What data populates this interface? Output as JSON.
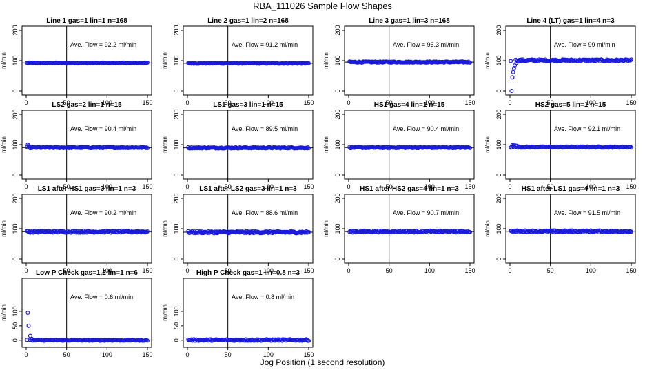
{
  "figure": {
    "title": "RBA_111026  Sample Flow Shapes",
    "xlabel": "Jog Position (1 second resolution)"
  },
  "colors": {
    "points": "#1a1adb",
    "axes": "#000000"
  },
  "chart_data": [
    {
      "type": "scatter",
      "title": "Line 1 gas=1 lin=1 n=168",
      "annotation": "Ave. Flow =  92.2  ml/min",
      "ylabel": "ml/min",
      "xlim": [
        0,
        150
      ],
      "ylim": [
        0,
        200
      ],
      "xticks": [
        0,
        50,
        100,
        150
      ],
      "yticks": [
        0,
        100,
        200
      ],
      "vline": 50,
      "hline": 92.2,
      "series": [
        {
          "x_range": [
            1,
            150
          ],
          "y": 92.2,
          "noise": 1.5
        }
      ]
    },
    {
      "type": "scatter",
      "title": "Line 2 gas=1 lin=2 n=168",
      "annotation": "Ave. Flow =  91.2  ml/min",
      "ylabel": "ml/min",
      "xlim": [
        0,
        150
      ],
      "ylim": [
        0,
        200
      ],
      "xticks": [
        0,
        50,
        100,
        150
      ],
      "yticks": [
        0,
        100,
        200
      ],
      "vline": 50,
      "hline": 91.2,
      "series": [
        {
          "x_range": [
            1,
            150
          ],
          "y": 91.2,
          "noise": 1.5
        }
      ]
    },
    {
      "type": "scatter",
      "title": "Line 3 gas=1 lin=3 n=168",
      "annotation": "Ave. Flow =  95.3  ml/min",
      "ylabel": "ml/min",
      "xlim": [
        0,
        150
      ],
      "ylim": [
        0,
        200
      ],
      "xticks": [
        0,
        50,
        100,
        150
      ],
      "yticks": [
        0,
        100,
        200
      ],
      "vline": 50,
      "hline": 95.3,
      "series": [
        {
          "x_range": [
            1,
            150
          ],
          "y": 95.3,
          "noise": 2
        }
      ]
    },
    {
      "type": "scatter",
      "title": "Line 4 (LT) gas=1 lin=4 n=3",
      "annotation": "Ave. Flow =  99  ml/min",
      "ylabel": "ml/min",
      "xlim": [
        0,
        150
      ],
      "ylim": [
        0,
        200
      ],
      "xticks": [
        0,
        50,
        100,
        150
      ],
      "yticks": [
        0,
        100,
        200
      ],
      "vline": 50,
      "hline": 99,
      "series": [
        {
          "x_range": [
            1,
            150
          ],
          "y": 101,
          "noise": 3,
          "start_points": [
            [
              2,
              0
            ],
            [
              3,
              45
            ],
            [
              4,
              62
            ],
            [
              5,
              75
            ],
            [
              6,
              84
            ],
            [
              8,
              92
            ],
            [
              10,
              97
            ]
          ]
        }
      ]
    },
    {
      "type": "scatter",
      "title": "LS2 gas=2 lin=1 n=15",
      "annotation": "Ave. Flow =  90.4  ml/min",
      "ylabel": "ml/min",
      "xlim": [
        0,
        150
      ],
      "ylim": [
        0,
        200
      ],
      "xticks": [
        0,
        50,
        100,
        150
      ],
      "yticks": [
        0,
        100,
        200
      ],
      "vline": 50,
      "hline": 90.4,
      "series": [
        {
          "x_range": [
            1,
            150
          ],
          "y": 90.4,
          "noise": 2,
          "start_points": [
            [
              2,
              100
            ],
            [
              3,
              97
            ]
          ]
        }
      ]
    },
    {
      "type": "scatter",
      "title": "LS1 gas=3 lin=1 n=15",
      "annotation": "Ave. Flow =  89.5  ml/min",
      "ylabel": "ml/min",
      "xlim": [
        0,
        150
      ],
      "ylim": [
        0,
        200
      ],
      "xticks": [
        0,
        50,
        100,
        150
      ],
      "yticks": [
        0,
        100,
        200
      ],
      "vline": 50,
      "hline": 89.5,
      "series": [
        {
          "x_range": [
            1,
            150
          ],
          "y": 89.5,
          "noise": 2
        }
      ]
    },
    {
      "type": "scatter",
      "title": "HS1 gas=4 lin=1 n=15",
      "annotation": "Ave. Flow =  90.4  ml/min",
      "ylabel": "ml/min",
      "xlim": [
        0,
        150
      ],
      "ylim": [
        0,
        200
      ],
      "xticks": [
        0,
        50,
        100,
        150
      ],
      "yticks": [
        0,
        100,
        200
      ],
      "vline": 50,
      "hline": 90.4,
      "series": [
        {
          "x_range": [
            1,
            150
          ],
          "y": 90.4,
          "noise": 2
        }
      ]
    },
    {
      "type": "scatter",
      "title": "HS2 gas=5 lin=1 n=15",
      "annotation": "Ave. Flow =  92.1  ml/min",
      "ylabel": "ml/min",
      "xlim": [
        0,
        150
      ],
      "ylim": [
        0,
        200
      ],
      "xticks": [
        0,
        50,
        100,
        150
      ],
      "yticks": [
        0,
        100,
        200
      ],
      "vline": 50,
      "hline": 92.1,
      "series": [
        {
          "x_range": [
            1,
            150
          ],
          "y": 92.1,
          "noise": 2,
          "start_points": [
            [
              3,
              98
            ],
            [
              5,
              99
            ],
            [
              7,
              97
            ],
            [
              9,
              96
            ]
          ]
        }
      ]
    },
    {
      "type": "scatter",
      "title": "LS1 after HS1 gas=3 lin=1 n=3",
      "annotation": "Ave. Flow =  90.2  ml/min",
      "ylabel": "ml/min",
      "xlim": [
        0,
        150
      ],
      "ylim": [
        0,
        200
      ],
      "xticks": [
        0,
        50,
        100,
        150
      ],
      "yticks": [
        0,
        100,
        200
      ],
      "vline": 50,
      "hline": 90.2,
      "series": [
        {
          "x_range": [
            1,
            150
          ],
          "y": 90.2,
          "noise": 3
        }
      ]
    },
    {
      "type": "scatter",
      "title": "LS1 after LS2 gas=3 lin=1 n=3",
      "annotation": "Ave. Flow =  88.6  ml/min",
      "ylabel": "ml/min",
      "xlim": [
        0,
        150
      ],
      "ylim": [
        0,
        200
      ],
      "xticks": [
        0,
        50,
        100,
        150
      ],
      "yticks": [
        0,
        100,
        200
      ],
      "vline": 50,
      "hline": 88.6,
      "series": [
        {
          "x_range": [
            1,
            150
          ],
          "y": 88.6,
          "noise": 3
        }
      ]
    },
    {
      "type": "scatter",
      "title": "HS1 after HS2 gas=4 lin=1 n=3",
      "annotation": "Ave. Flow =  90.7  ml/min",
      "ylabel": "ml/min",
      "xlim": [
        0,
        150
      ],
      "ylim": [
        0,
        200
      ],
      "xticks": [
        0,
        50,
        100,
        150
      ],
      "yticks": [
        0,
        100,
        200
      ],
      "vline": 50,
      "hline": 90.7,
      "series": [
        {
          "x_range": [
            1,
            150
          ],
          "y": 90.7,
          "noise": 3
        }
      ]
    },
    {
      "type": "scatter",
      "title": "HS1 after LS1 gas=4 lin=1 n=3",
      "annotation": "Ave. Flow =  91.5  ml/min",
      "ylabel": "ml/min",
      "xlim": [
        0,
        150
      ],
      "ylim": [
        0,
        200
      ],
      "xticks": [
        0,
        50,
        100,
        150
      ],
      "yticks": [
        0,
        100,
        200
      ],
      "vline": 50,
      "hline": 91.5,
      "series": [
        {
          "x_range": [
            1,
            150
          ],
          "y": 91.5,
          "noise": 3
        }
      ]
    },
    {
      "type": "scatter",
      "title": "Low P Check gas=1.2 lin=1 n=6",
      "annotation": "Ave. Flow =  0.6  ml/min",
      "ylabel": "ml/min",
      "xlim": [
        0,
        150
      ],
      "ylim": [
        -10,
        200
      ],
      "xticks": [
        0,
        50,
        100,
        150
      ],
      "yticks": [
        0,
        50,
        100
      ],
      "vline": 50,
      "hline": 0.6,
      "series": [
        {
          "x_range": [
            1,
            150
          ],
          "y": 0,
          "noise": 2,
          "start_points": [
            [
              2,
              95
            ],
            [
              3,
              50
            ],
            [
              5,
              15
            ],
            [
              7,
              5
            ]
          ]
        }
      ]
    },
    {
      "type": "scatter",
      "title": "High P Check gas=1 lin=0.8 n=3",
      "annotation": "Ave. Flow =  0.8  ml/min",
      "ylabel": "ml/min",
      "xlim": [
        0,
        150
      ],
      "ylim": [
        -10,
        200
      ],
      "xticks": [
        0,
        50,
        100,
        150
      ],
      "yticks": [
        0,
        50,
        100
      ],
      "vline": 50,
      "hline": 0.8,
      "series": [
        {
          "x_range": [
            1,
            150
          ],
          "y": 0.8,
          "noise": 3
        }
      ]
    }
  ]
}
